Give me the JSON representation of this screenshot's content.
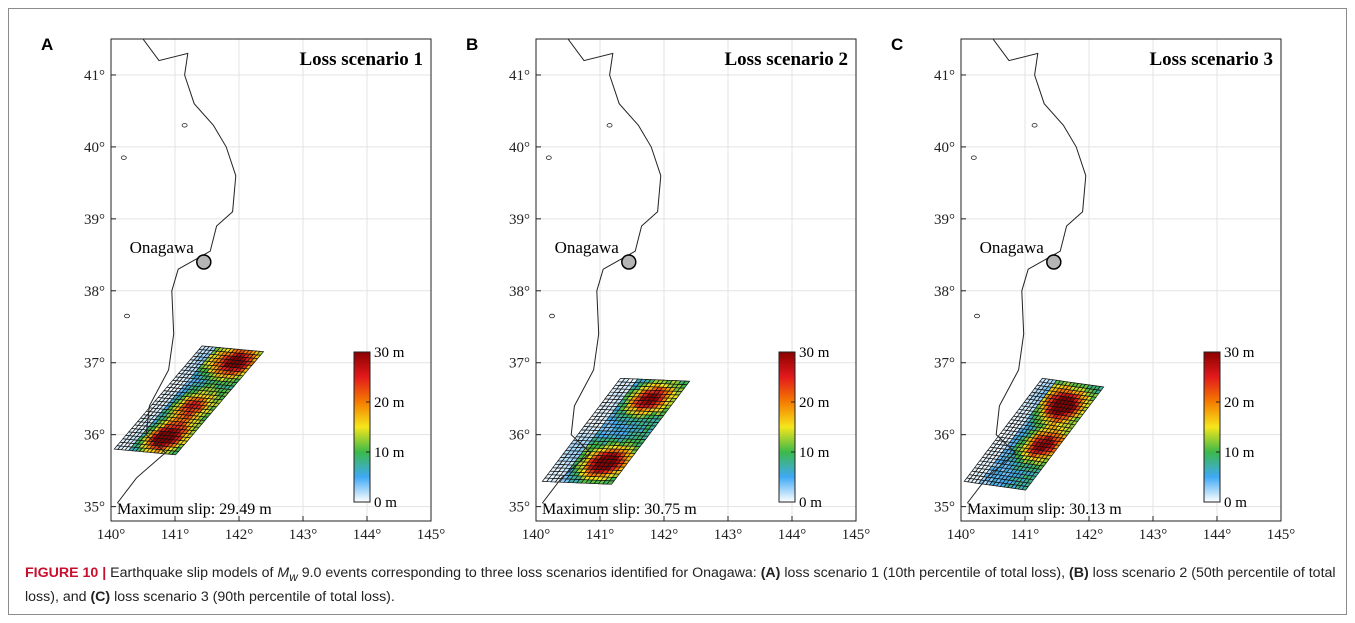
{
  "figure": {
    "caption_label": "FIGURE 10 |",
    "caption_pre": " Earthquake slip models of ",
    "caption_symbol": "M",
    "caption_sub": "w",
    "caption_text": " 9.0 events corresponding to three loss scenarios identified for Onagawa: ",
    "caption_a": "(A)",
    "caption_a_text": " loss scenario 1 (10th percentile of total loss), ",
    "caption_b": "(B)",
    "caption_b_text": " loss scenario 2 (50th percentile of total loss), and ",
    "caption_c": "(C)",
    "caption_c_text": " loss scenario 3 (90th percentile of total loss)."
  },
  "axes": {
    "x_ticks": [
      "140°",
      "141°",
      "142°",
      "143°",
      "144°",
      "145°"
    ],
    "y_ticks": [
      "35°",
      "36°",
      "37°",
      "38°",
      "39°",
      "40°",
      "41°"
    ],
    "lon_range": [
      140,
      145
    ],
    "lat_range": [
      34.8,
      41.5
    ]
  },
  "colorbar": {
    "labels": [
      "30 m",
      "20 m",
      "10 m",
      "0 m"
    ],
    "range_m": [
      0,
      30
    ],
    "colors": [
      "#ffffff",
      "#3fa9f5",
      "#3cb94a",
      "#f5e61b",
      "#f57c00",
      "#e31a1c",
      "#8b0000"
    ]
  },
  "city": {
    "name": "Onagawa",
    "lon": 141.45,
    "lat": 38.4
  },
  "panels": [
    {
      "letter": "A",
      "title": "Loss scenario 1",
      "max_slip_label": "Maximum slip: 29.49 m",
      "max_slip_m": 29.49
    },
    {
      "letter": "B",
      "title": "Loss scenario 2",
      "max_slip_label": "Maximum slip: 30.75 m",
      "max_slip_m": 30.75
    },
    {
      "letter": "C",
      "title": "Loss scenario 3",
      "max_slip_label": "Maximum slip: 30.13 m",
      "max_slip_m": 30.13
    }
  ]
}
